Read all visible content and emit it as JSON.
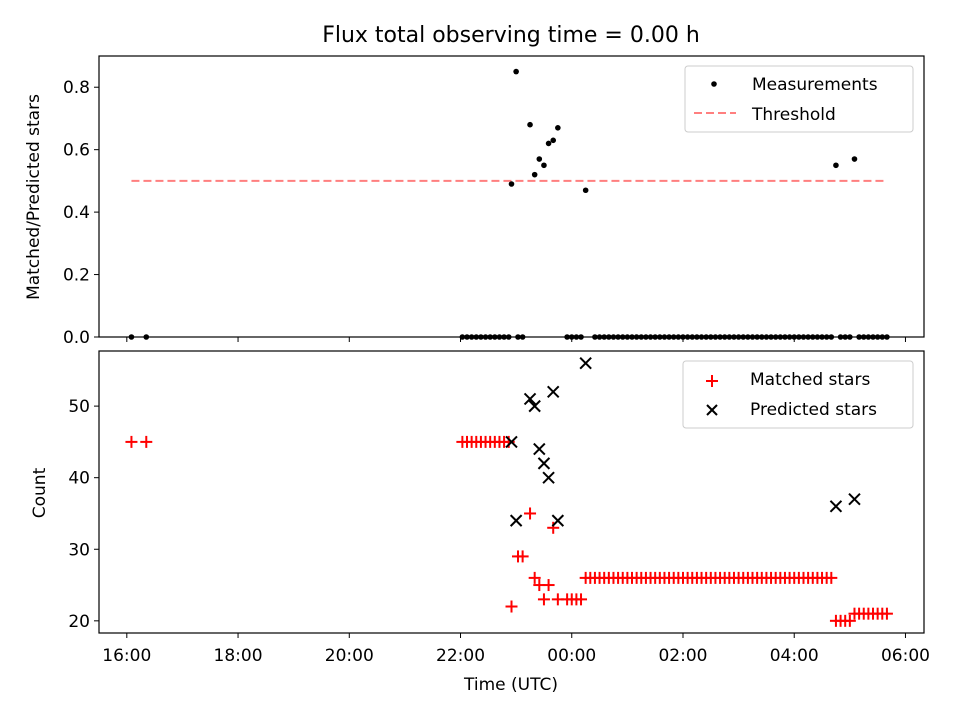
{
  "title": "Flux total observing time = 0.00 h",
  "chart_data": [
    {
      "type": "scatter",
      "panel": "top",
      "title": "Flux total observing time = 0.00 h",
      "xlabel": "",
      "ylabel": "Matched/Predicted stars",
      "xlim": [
        "15:30",
        "06:20"
      ],
      "ylim": [
        0,
        0.9
      ],
      "yticks": [
        "0.0",
        "0.2",
        "0.4",
        "0.6",
        "0.8"
      ],
      "grid": false,
      "legend_position": "top-right",
      "series": [
        {
          "name": "Measurements",
          "kind": "points",
          "color": "#000000",
          "points": [
            [
              "16:05",
              0.0
            ],
            [
              "16:21",
              0.0
            ],
            [
              "22:02",
              0.0
            ],
            [
              "22:07",
              0.0
            ],
            [
              "22:12",
              0.0
            ],
            [
              "22:17",
              0.0
            ],
            [
              "22:22",
              0.0
            ],
            [
              "22:27",
              0.0
            ],
            [
              "22:32",
              0.0
            ],
            [
              "22:37",
              0.0
            ],
            [
              "22:42",
              0.0
            ],
            [
              "22:47",
              0.0
            ],
            [
              "22:52",
              0.0
            ],
            [
              "23:02",
              0.0
            ],
            [
              "23:07",
              0.0
            ],
            [
              "22:55",
              0.49
            ],
            [
              "23:00",
              0.85
            ],
            [
              "23:15",
              0.68
            ],
            [
              "23:20",
              0.52
            ],
            [
              "23:25",
              0.57
            ],
            [
              "23:30",
              0.55
            ],
            [
              "23:35",
              0.62
            ],
            [
              "23:40",
              0.63
            ],
            [
              "23:45",
              0.67
            ],
            [
              "00:15",
              0.47
            ],
            [
              "23:55",
              0.0
            ],
            [
              "00:00",
              0.0
            ],
            [
              "00:05",
              0.0
            ],
            [
              "00:10",
              0.0
            ],
            [
              "00:25",
              0.0
            ],
            [
              "00:30",
              0.0
            ],
            [
              "00:35",
              0.0
            ],
            [
              "00:40",
              0.0
            ],
            [
              "00:45",
              0.0
            ],
            [
              "00:50",
              0.0
            ],
            [
              "00:55",
              0.0
            ],
            [
              "01:00",
              0.0
            ],
            [
              "01:05",
              0.0
            ],
            [
              "01:10",
              0.0
            ],
            [
              "01:15",
              0.0
            ],
            [
              "01:20",
              0.0
            ],
            [
              "01:25",
              0.0
            ],
            [
              "01:30",
              0.0
            ],
            [
              "01:35",
              0.0
            ],
            [
              "01:40",
              0.0
            ],
            [
              "01:45",
              0.0
            ],
            [
              "01:50",
              0.0
            ],
            [
              "01:55",
              0.0
            ],
            [
              "02:00",
              0.0
            ],
            [
              "02:05",
              0.0
            ],
            [
              "02:10",
              0.0
            ],
            [
              "02:15",
              0.0
            ],
            [
              "02:20",
              0.0
            ],
            [
              "02:25",
              0.0
            ],
            [
              "02:30",
              0.0
            ],
            [
              "02:35",
              0.0
            ],
            [
              "02:40",
              0.0
            ],
            [
              "02:45",
              0.0
            ],
            [
              "02:50",
              0.0
            ],
            [
              "02:55",
              0.0
            ],
            [
              "03:00",
              0.0
            ],
            [
              "03:05",
              0.0
            ],
            [
              "03:10",
              0.0
            ],
            [
              "03:15",
              0.0
            ],
            [
              "03:20",
              0.0
            ],
            [
              "03:25",
              0.0
            ],
            [
              "03:30",
              0.0
            ],
            [
              "03:35",
              0.0
            ],
            [
              "03:40",
              0.0
            ],
            [
              "03:45",
              0.0
            ],
            [
              "03:50",
              0.0
            ],
            [
              "03:55",
              0.0
            ],
            [
              "04:00",
              0.0
            ],
            [
              "04:05",
              0.0
            ],
            [
              "04:10",
              0.0
            ],
            [
              "04:15",
              0.0
            ],
            [
              "04:20",
              0.0
            ],
            [
              "04:25",
              0.0
            ],
            [
              "04:30",
              0.0
            ],
            [
              "04:35",
              0.0
            ],
            [
              "04:40",
              0.0
            ],
            [
              "04:45",
              0.55
            ],
            [
              "05:05",
              0.57
            ],
            [
              "04:50",
              0.0
            ],
            [
              "04:55",
              0.0
            ],
            [
              "05:00",
              0.0
            ],
            [
              "05:10",
              0.0
            ],
            [
              "05:15",
              0.0
            ],
            [
              "05:20",
              0.0
            ],
            [
              "05:25",
              0.0
            ],
            [
              "05:30",
              0.0
            ],
            [
              "05:35",
              0.0
            ],
            [
              "05:40",
              0.0
            ]
          ]
        },
        {
          "name": "Threshold",
          "kind": "dashed-line",
          "color": "#ff7f7f",
          "points": [
            [
              "16:05",
              0.5
            ],
            [
              "05:40",
              0.5
            ]
          ]
        }
      ]
    },
    {
      "type": "scatter",
      "panel": "bottom",
      "xlabel": "Time (UTC)",
      "ylabel": "Count",
      "xlim": [
        "15:30",
        "06:20"
      ],
      "ylim": [
        18.3,
        57.7
      ],
      "yticks": [
        "20",
        "30",
        "40",
        "50"
      ],
      "xticks": [
        "16:00",
        "18:00",
        "20:00",
        "22:00",
        "00:00",
        "02:00",
        "04:00",
        "06:00"
      ],
      "grid": false,
      "legend_position": "top-right",
      "series": [
        {
          "name": "Matched stars",
          "marker": "+",
          "color": "#ff0000",
          "points": [
            [
              "16:05",
              45
            ],
            [
              "16:21",
              45
            ],
            [
              "22:02",
              45
            ],
            [
              "22:07",
              45
            ],
            [
              "22:12",
              45
            ],
            [
              "22:17",
              45
            ],
            [
              "22:22",
              45
            ],
            [
              "22:27",
              45
            ],
            [
              "22:32",
              45
            ],
            [
              "22:37",
              45
            ],
            [
              "22:42",
              45
            ],
            [
              "22:47",
              45
            ],
            [
              "22:52",
              45
            ],
            [
              "22:55",
              22
            ],
            [
              "23:02",
              29
            ],
            [
              "23:07",
              29
            ],
            [
              "23:15",
              35
            ],
            [
              "23:20",
              26
            ],
            [
              "23:25",
              25
            ],
            [
              "23:30",
              23
            ],
            [
              "23:35",
              25
            ],
            [
              "23:40",
              33
            ],
            [
              "23:45",
              23
            ],
            [
              "23:55",
              23
            ],
            [
              "00:00",
              23
            ],
            [
              "00:05",
              23
            ],
            [
              "00:10",
              23
            ],
            [
              "00:15",
              26
            ],
            [
              "00:20",
              26
            ],
            [
              "00:25",
              26
            ],
            [
              "00:30",
              26
            ],
            [
              "00:35",
              26
            ],
            [
              "00:40",
              26
            ],
            [
              "00:45",
              26
            ],
            [
              "00:50",
              26
            ],
            [
              "00:55",
              26
            ],
            [
              "01:00",
              26
            ],
            [
              "01:05",
              26
            ],
            [
              "01:10",
              26
            ],
            [
              "01:15",
              26
            ],
            [
              "01:20",
              26
            ],
            [
              "01:25",
              26
            ],
            [
              "01:30",
              26
            ],
            [
              "01:35",
              26
            ],
            [
              "01:40",
              26
            ],
            [
              "01:45",
              26
            ],
            [
              "01:50",
              26
            ],
            [
              "01:55",
              26
            ],
            [
              "02:00",
              26
            ],
            [
              "02:05",
              26
            ],
            [
              "02:10",
              26
            ],
            [
              "02:15",
              26
            ],
            [
              "02:20",
              26
            ],
            [
              "02:25",
              26
            ],
            [
              "02:30",
              26
            ],
            [
              "02:35",
              26
            ],
            [
              "02:40",
              26
            ],
            [
              "02:45",
              26
            ],
            [
              "02:50",
              26
            ],
            [
              "02:55",
              26
            ],
            [
              "03:00",
              26
            ],
            [
              "03:05",
              26
            ],
            [
              "03:10",
              26
            ],
            [
              "03:15",
              26
            ],
            [
              "03:20",
              26
            ],
            [
              "03:25",
              26
            ],
            [
              "03:30",
              26
            ],
            [
              "03:35",
              26
            ],
            [
              "03:40",
              26
            ],
            [
              "03:45",
              26
            ],
            [
              "03:50",
              26
            ],
            [
              "03:55",
              26
            ],
            [
              "04:00",
              26
            ],
            [
              "04:05",
              26
            ],
            [
              "04:10",
              26
            ],
            [
              "04:15",
              26
            ],
            [
              "04:20",
              26
            ],
            [
              "04:25",
              26
            ],
            [
              "04:30",
              26
            ],
            [
              "04:35",
              26
            ],
            [
              "04:40",
              26
            ],
            [
              "04:45",
              20
            ],
            [
              "04:50",
              20
            ],
            [
              "04:55",
              20
            ],
            [
              "05:00",
              20
            ],
            [
              "05:05",
              21
            ],
            [
              "05:10",
              21
            ],
            [
              "05:15",
              21
            ],
            [
              "05:20",
              21
            ],
            [
              "05:25",
              21
            ],
            [
              "05:30",
              21
            ],
            [
              "05:35",
              21
            ],
            [
              "05:40",
              21
            ]
          ]
        },
        {
          "name": "Predicted stars",
          "marker": "x",
          "color": "#000000",
          "points": [
            [
              "22:55",
              45
            ],
            [
              "23:00",
              34
            ],
            [
              "23:15",
              51
            ],
            [
              "23:20",
              50
            ],
            [
              "23:25",
              44
            ],
            [
              "23:30",
              42
            ],
            [
              "23:35",
              40
            ],
            [
              "23:40",
              52
            ],
            [
              "23:45",
              34
            ],
            [
              "00:15",
              56
            ],
            [
              "04:45",
              36
            ],
            [
              "05:05",
              37
            ]
          ]
        }
      ]
    }
  ]
}
